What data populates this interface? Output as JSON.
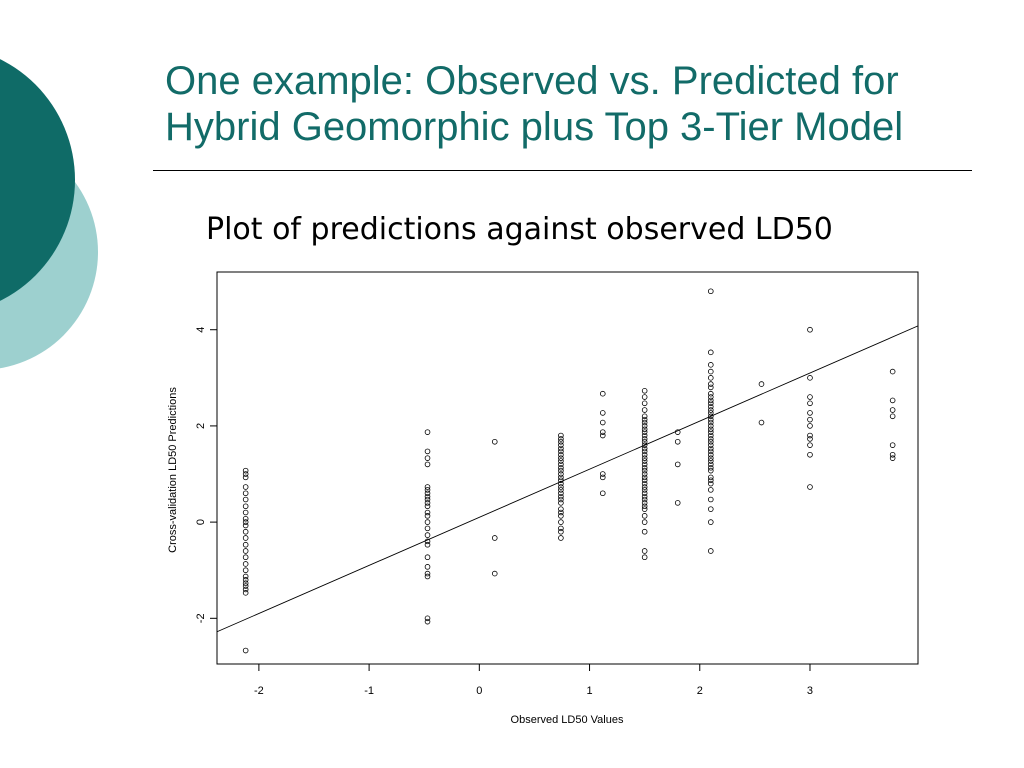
{
  "slide": {
    "title_line1": "One example: Observed vs. Predicted for",
    "title_line2": "Hybrid Geomorphic plus Top 3-Tier Model",
    "subtitle": "Plot of predictions against observed LD50",
    "colors": {
      "title": "#126b68",
      "circle_dark": "#0f6b67",
      "circle_light": "#9dd0cf"
    }
  },
  "chart_data": {
    "type": "scatter",
    "title": "",
    "xlabel": "Observed LD50 Values",
    "ylabel": "Cross-validation LD50 Predictions",
    "xlim": [
      -2.38,
      3.98
    ],
    "ylim": [
      -2.95,
      5.2
    ],
    "xticks": [
      -2,
      -1,
      0,
      1,
      2,
      3
    ],
    "yticks": [
      -2,
      0,
      2,
      4
    ],
    "xtick_labels": [
      "-2",
      "-1",
      "0",
      "1",
      "2",
      "3"
    ],
    "ytick_labels": [
      "-2",
      "0",
      "2",
      "4"
    ],
    "grid": false,
    "legend": "none",
    "fit_line": {
      "slope": 1.0,
      "intercept": 0.1
    },
    "series": [
      {
        "points": [
          [
            -2.12,
            1.07
          ],
          [
            -2.12,
            1.0
          ],
          [
            -2.12,
            0.93
          ],
          [
            -2.12,
            0.73
          ],
          [
            -2.12,
            0.6
          ],
          [
            -2.12,
            0.47
          ],
          [
            -2.12,
            0.33
          ],
          [
            -2.12,
            0.2
          ],
          [
            -2.12,
            0.07
          ],
          [
            -2.12,
            0.0
          ],
          [
            -2.12,
            -0.07
          ],
          [
            -2.12,
            -0.2
          ],
          [
            -2.12,
            -0.33
          ],
          [
            -2.12,
            -0.47
          ],
          [
            -2.12,
            -0.6
          ],
          [
            -2.12,
            -0.73
          ],
          [
            -2.12,
            -0.87
          ],
          [
            -2.12,
            -1.0
          ],
          [
            -2.12,
            -1.13
          ],
          [
            -2.12,
            -1.2
          ],
          [
            -2.12,
            -1.27
          ],
          [
            -2.12,
            -1.33
          ],
          [
            -2.12,
            -1.4
          ],
          [
            -2.12,
            -1.47
          ],
          [
            -2.12,
            -2.67
          ],
          [
            -0.47,
            1.87
          ],
          [
            -0.47,
            1.47
          ],
          [
            -0.47,
            1.33
          ],
          [
            -0.47,
            1.2
          ],
          [
            -0.47,
            0.73
          ],
          [
            -0.47,
            0.67
          ],
          [
            -0.47,
            0.6
          ],
          [
            -0.47,
            0.53
          ],
          [
            -0.47,
            0.47
          ],
          [
            -0.47,
            0.4
          ],
          [
            -0.47,
            0.33
          ],
          [
            -0.47,
            0.2
          ],
          [
            -0.47,
            0.13
          ],
          [
            -0.47,
            0.0
          ],
          [
            -0.47,
            -0.13
          ],
          [
            -0.47,
            -0.27
          ],
          [
            -0.47,
            -0.4
          ],
          [
            -0.47,
            -0.47
          ],
          [
            -0.47,
            -0.73
          ],
          [
            -0.47,
            -0.93
          ],
          [
            -0.47,
            -1.07
          ],
          [
            -0.47,
            -1.13
          ],
          [
            -0.47,
            -2.0
          ],
          [
            -0.47,
            -2.07
          ],
          [
            0.14,
            1.67
          ],
          [
            0.14,
            -0.33
          ],
          [
            0.14,
            -1.07
          ],
          [
            0.74,
            1.8
          ],
          [
            0.74,
            1.73
          ],
          [
            0.74,
            1.67
          ],
          [
            0.74,
            1.6
          ],
          [
            0.74,
            1.53
          ],
          [
            0.74,
            1.47
          ],
          [
            0.74,
            1.4
          ],
          [
            0.74,
            1.33
          ],
          [
            0.74,
            1.27
          ],
          [
            0.74,
            1.2
          ],
          [
            0.74,
            1.13
          ],
          [
            0.74,
            1.07
          ],
          [
            0.74,
            1.0
          ],
          [
            0.74,
            0.93
          ],
          [
            0.74,
            0.87
          ],
          [
            0.74,
            0.8
          ],
          [
            0.74,
            0.73
          ],
          [
            0.74,
            0.67
          ],
          [
            0.74,
            0.6
          ],
          [
            0.74,
            0.53
          ],
          [
            0.74,
            0.47
          ],
          [
            0.74,
            0.4
          ],
          [
            0.74,
            0.27
          ],
          [
            0.74,
            0.2
          ],
          [
            0.74,
            0.13
          ],
          [
            0.74,
            0.0
          ],
          [
            0.74,
            -0.13
          ],
          [
            0.74,
            -0.2
          ],
          [
            0.74,
            -0.33
          ],
          [
            1.12,
            2.67
          ],
          [
            1.12,
            2.27
          ],
          [
            1.12,
            2.07
          ],
          [
            1.12,
            1.87
          ],
          [
            1.12,
            1.8
          ],
          [
            1.12,
            1.0
          ],
          [
            1.12,
            0.93
          ],
          [
            1.12,
            0.6
          ],
          [
            1.5,
            2.73
          ],
          [
            1.5,
            2.6
          ],
          [
            1.5,
            2.47
          ],
          [
            1.5,
            2.33
          ],
          [
            1.5,
            2.2
          ],
          [
            1.5,
            2.13
          ],
          [
            1.5,
            2.07
          ],
          [
            1.5,
            2.0
          ],
          [
            1.5,
            1.93
          ],
          [
            1.5,
            1.87
          ],
          [
            1.5,
            1.8
          ],
          [
            1.5,
            1.73
          ],
          [
            1.5,
            1.67
          ],
          [
            1.5,
            1.6
          ],
          [
            1.5,
            1.53
          ],
          [
            1.5,
            1.47
          ],
          [
            1.5,
            1.4
          ],
          [
            1.5,
            1.33
          ],
          [
            1.5,
            1.27
          ],
          [
            1.5,
            1.2
          ],
          [
            1.5,
            1.13
          ],
          [
            1.5,
            1.07
          ],
          [
            1.5,
            1.0
          ],
          [
            1.5,
            0.93
          ],
          [
            1.5,
            0.87
          ],
          [
            1.5,
            0.8
          ],
          [
            1.5,
            0.73
          ],
          [
            1.5,
            0.67
          ],
          [
            1.5,
            0.6
          ],
          [
            1.5,
            0.53
          ],
          [
            1.5,
            0.47
          ],
          [
            1.5,
            0.4
          ],
          [
            1.5,
            0.33
          ],
          [
            1.5,
            0.27
          ],
          [
            1.5,
            0.13
          ],
          [
            1.5,
            0.0
          ],
          [
            1.5,
            -0.2
          ],
          [
            1.5,
            -0.6
          ],
          [
            1.5,
            -0.73
          ],
          [
            1.8,
            1.87
          ],
          [
            1.8,
            1.67
          ],
          [
            1.8,
            1.2
          ],
          [
            1.8,
            0.4
          ],
          [
            2.1,
            4.8
          ],
          [
            2.1,
            3.53
          ],
          [
            2.1,
            3.27
          ],
          [
            2.1,
            3.13
          ],
          [
            2.1,
            3.0
          ],
          [
            2.1,
            2.87
          ],
          [
            2.1,
            2.8
          ],
          [
            2.1,
            2.67
          ],
          [
            2.1,
            2.6
          ],
          [
            2.1,
            2.53
          ],
          [
            2.1,
            2.47
          ],
          [
            2.1,
            2.4
          ],
          [
            2.1,
            2.33
          ],
          [
            2.1,
            2.27
          ],
          [
            2.1,
            2.2
          ],
          [
            2.1,
            2.13
          ],
          [
            2.1,
            2.07
          ],
          [
            2.1,
            2.0
          ],
          [
            2.1,
            1.93
          ],
          [
            2.1,
            1.87
          ],
          [
            2.1,
            1.8
          ],
          [
            2.1,
            1.73
          ],
          [
            2.1,
            1.67
          ],
          [
            2.1,
            1.6
          ],
          [
            2.1,
            1.53
          ],
          [
            2.1,
            1.47
          ],
          [
            2.1,
            1.4
          ],
          [
            2.1,
            1.33
          ],
          [
            2.1,
            1.27
          ],
          [
            2.1,
            1.2
          ],
          [
            2.1,
            1.13
          ],
          [
            2.1,
            1.07
          ],
          [
            2.1,
            0.93
          ],
          [
            2.1,
            0.87
          ],
          [
            2.1,
            0.8
          ],
          [
            2.1,
            0.67
          ],
          [
            2.1,
            0.47
          ],
          [
            2.1,
            0.27
          ],
          [
            2.1,
            0.0
          ],
          [
            2.1,
            -0.6
          ],
          [
            2.56,
            2.87
          ],
          [
            2.56,
            2.07
          ],
          [
            3.0,
            4.0
          ],
          [
            3.0,
            3.0
          ],
          [
            3.0,
            2.6
          ],
          [
            3.0,
            2.47
          ],
          [
            3.0,
            2.27
          ],
          [
            3.0,
            2.13
          ],
          [
            3.0,
            2.0
          ],
          [
            3.0,
            1.8
          ],
          [
            3.0,
            1.73
          ],
          [
            3.0,
            1.6
          ],
          [
            3.0,
            1.4
          ],
          [
            3.0,
            0.73
          ],
          [
            3.75,
            3.13
          ],
          [
            3.75,
            2.53
          ],
          [
            3.75,
            2.33
          ],
          [
            3.75,
            2.2
          ],
          [
            3.75,
            1.6
          ],
          [
            3.75,
            1.4
          ],
          [
            3.75,
            1.33
          ]
        ]
      }
    ]
  }
}
